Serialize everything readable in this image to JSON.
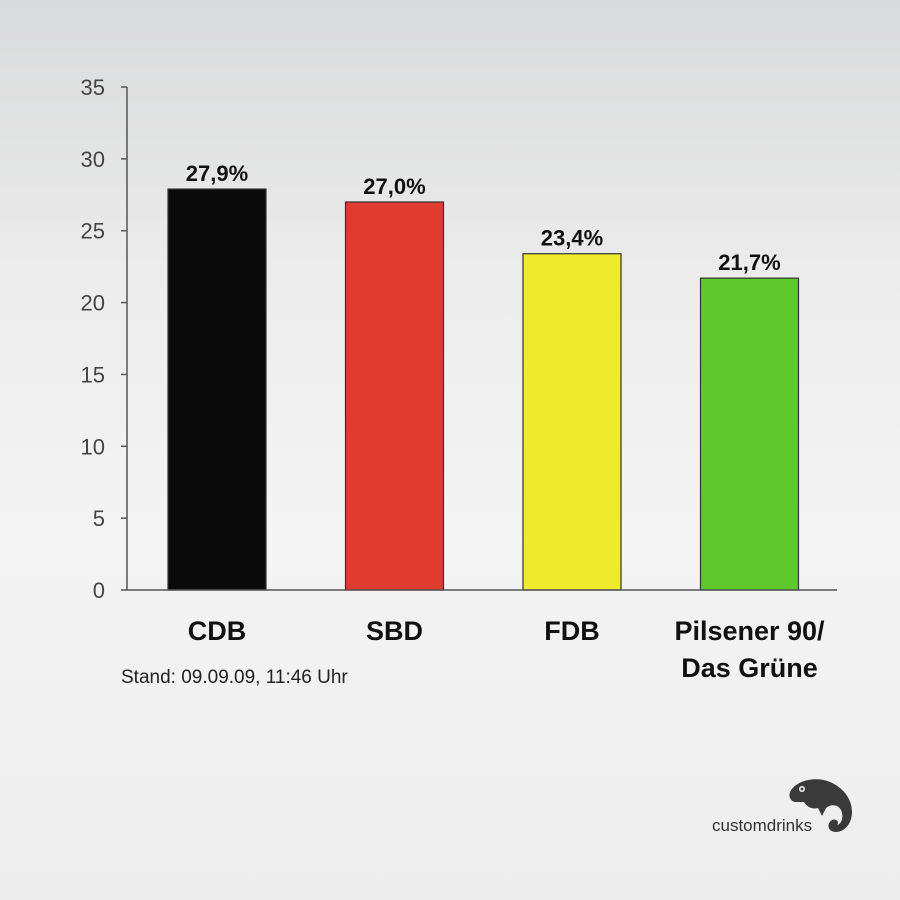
{
  "chart_data": {
    "type": "bar",
    "categories": [
      "CDB",
      "SBD",
      "FDB",
      "Pilsener 90/\nDas Grüne"
    ],
    "values": [
      27.9,
      27.0,
      23.4,
      21.7
    ],
    "value_labels": [
      "27,9%",
      "27,0%",
      "23,4%",
      "21,7%"
    ],
    "colors": [
      "#0a0a0a",
      "#df3b2f",
      "#f0ea2c",
      "#5ec82c"
    ],
    "ylim": [
      0,
      35
    ],
    "yticks": [
      0,
      5,
      10,
      15,
      20,
      25,
      30,
      35
    ],
    "grid": false,
    "legend": "none"
  },
  "footnote": "Stand: 09.09.09, 11:46 Uhr",
  "brand": {
    "name": "customdrinks",
    "icon": "chameleon-icon"
  }
}
